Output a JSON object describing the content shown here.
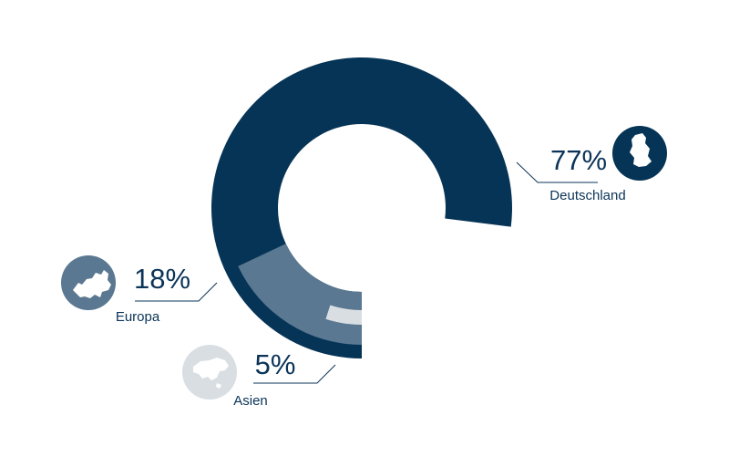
{
  "chart_data": {
    "type": "donut",
    "categories": [
      "Deutschland",
      "Europa",
      "Asien"
    ],
    "values": [
      77,
      18,
      5
    ],
    "value_labels": [
      "77%",
      "18%",
      "5%"
    ],
    "colors": [
      "#063456",
      "#5a7891",
      "#d9dee3"
    ]
  }
}
